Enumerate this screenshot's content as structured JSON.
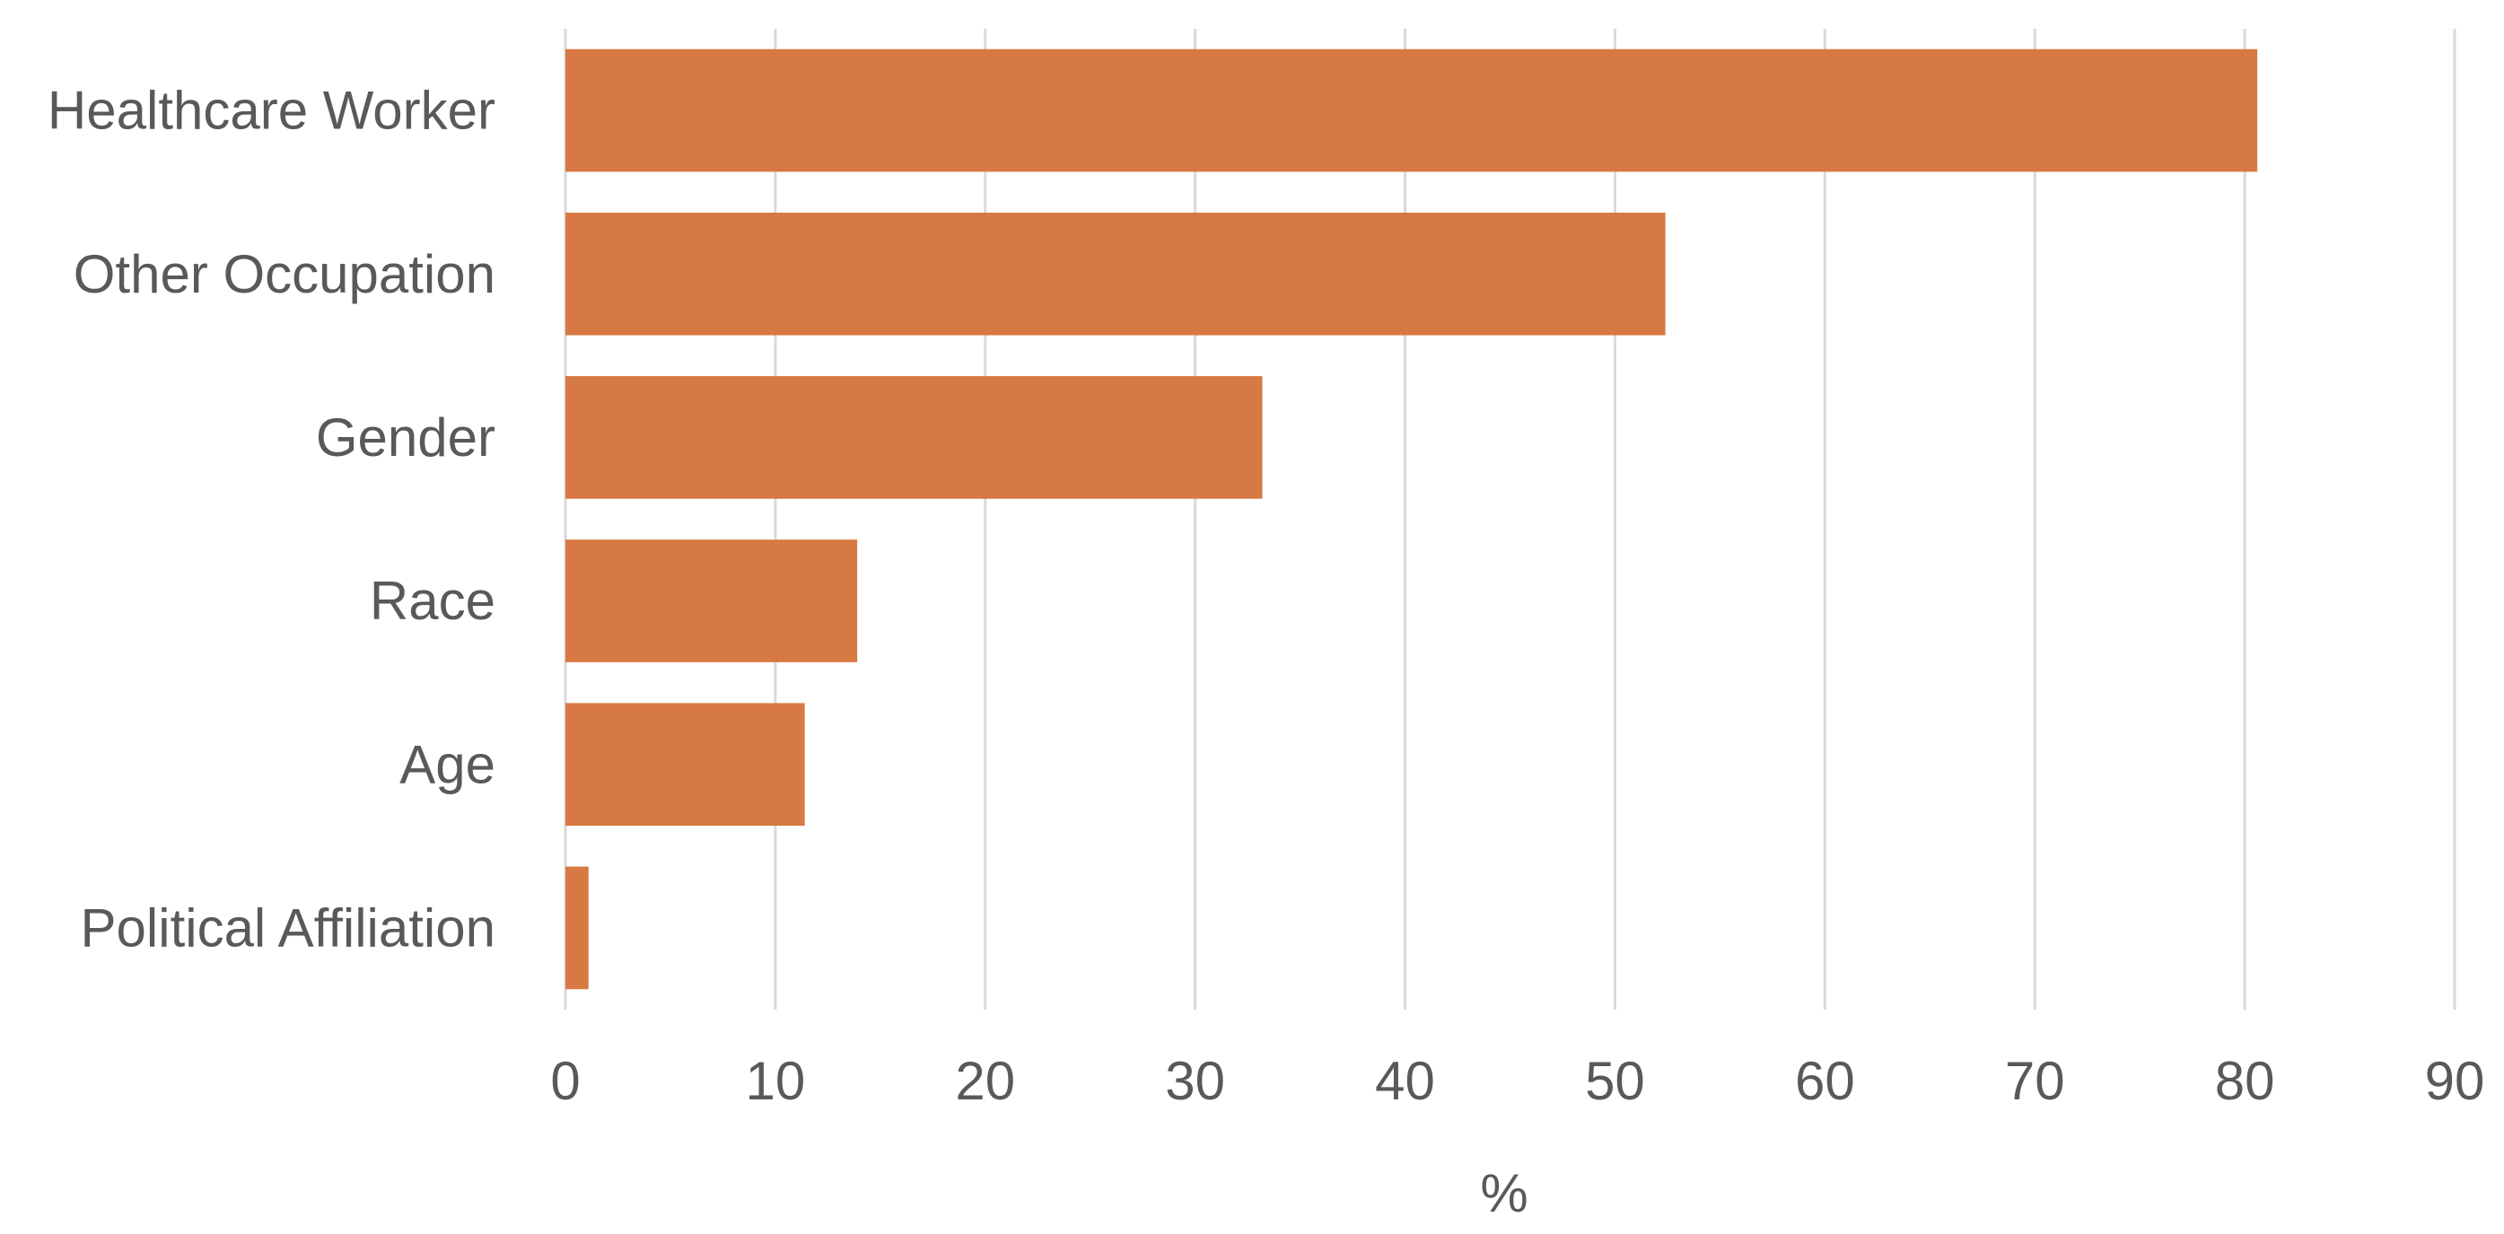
{
  "chart_data": {
    "type": "bar",
    "orientation": "horizontal",
    "categories": [
      "Healthcare Worker",
      "Other Occupation",
      "Gender",
      "Race",
      "Age",
      "Political Affiliation"
    ],
    "values": [
      80.6,
      52.4,
      33.2,
      13.9,
      11.4,
      1.1
    ],
    "title": "",
    "xlabel": "%",
    "ylabel": "",
    "xlim": [
      0,
      90
    ],
    "xticks": [
      0,
      10,
      20,
      30,
      40,
      50,
      60,
      70,
      80,
      90
    ],
    "grid": "vertical",
    "legend": "none",
    "colors": {
      "bar": "#D67942",
      "grid": "#D9D9D9",
      "text": "#595959"
    }
  }
}
